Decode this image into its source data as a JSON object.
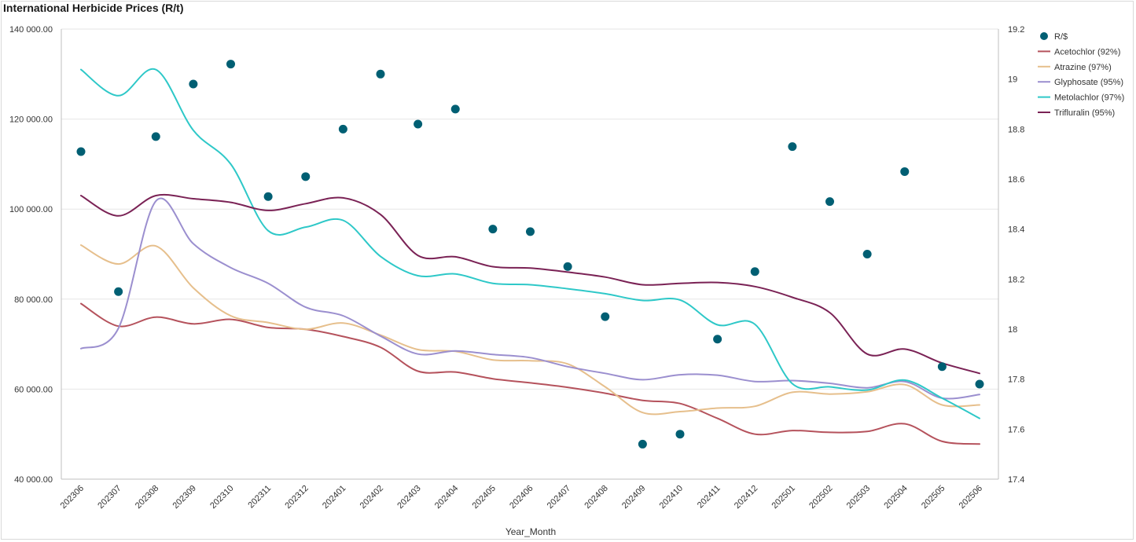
{
  "title": "International Herbicide Prices (R/t)",
  "chart_data": {
    "type": "line",
    "title": "International Herbicide Prices (R/t)",
    "xlabel": "Year_Month",
    "ylabel": "",
    "y2label": "",
    "categories": [
      "202306",
      "202307",
      "202308",
      "202309",
      "202310",
      "202311",
      "202312",
      "202401",
      "202402",
      "202403",
      "202404",
      "202405",
      "202406",
      "202407",
      "202408",
      "202409",
      "202410",
      "202411",
      "202412",
      "202501",
      "202502",
      "202503",
      "202504",
      "202505",
      "202506"
    ],
    "ylim": [
      40000,
      140000
    ],
    "y_ticks": [
      140000,
      120000,
      100000,
      80000,
      60000,
      40000
    ],
    "y_tick_labels": [
      "140 000.00",
      "120 000.00",
      "100 000.00",
      "80 000.00",
      "60 000.00",
      "40 000.00"
    ],
    "y2lim": [
      17.4,
      19.2
    ],
    "y2_ticks": [
      19.2,
      19,
      18.8,
      18.6,
      18.4,
      18.2,
      18,
      17.8,
      17.6,
      17.4
    ],
    "y2_tick_labels": [
      "19.2",
      "19",
      "18.8",
      "18.6",
      "18.4",
      "18.2",
      "18",
      "17.8",
      "17.6",
      "17.4"
    ],
    "grid": true,
    "legend_position": "top-right",
    "scatter_series": {
      "name": "R/$",
      "color": "#005f73",
      "axis": "right",
      "values": [
        18.71,
        18.15,
        18.77,
        18.98,
        19.06,
        18.53,
        18.61,
        18.8,
        19.02,
        18.82,
        18.88,
        18.4,
        18.39,
        18.25,
        18.05,
        17.54,
        17.58,
        17.96,
        18.23,
        18.73,
        18.51,
        18.3,
        18.63,
        17.85,
        17.78
      ]
    },
    "series": [
      {
        "name": "Acetochlor (92%)",
        "color": "#b5525c",
        "values": [
          79000,
          74000,
          76000,
          74500,
          75500,
          73700,
          73300,
          71700,
          69300,
          64000,
          63800,
          62300,
          61400,
          60400,
          59100,
          57500,
          56800,
          53500,
          50000,
          50800,
          50400,
          50600,
          52300,
          48400,
          47800
        ]
      },
      {
        "name": "Atrazine (97%)",
        "color": "#e6bf8c",
        "values": [
          92000,
          87800,
          91800,
          82500,
          76300,
          74800,
          73300,
          74700,
          72000,
          68800,
          68400,
          66500,
          66300,
          65600,
          60500,
          54800,
          55000,
          55800,
          56200,
          59300,
          58900,
          59400,
          61000,
          56500,
          56500
        ]
      },
      {
        "name": "Glyphosate (95%)",
        "color": "#9b8fcf",
        "values": [
          69000,
          73500,
          101800,
          92300,
          87000,
          83500,
          78200,
          76300,
          71800,
          67800,
          68500,
          67700,
          67000,
          65000,
          63500,
          62100,
          63200,
          63100,
          61700,
          61900,
          61300,
          60300,
          61700,
          58000,
          58800
        ]
      },
      {
        "name": "Metolachlor (97%)",
        "color": "#2ec8c8",
        "values": [
          131000,
          125200,
          131000,
          117500,
          110000,
          95200,
          96000,
          97500,
          89500,
          85200,
          85600,
          83500,
          83200,
          82300,
          81200,
          79700,
          79800,
          74300,
          74400,
          61200,
          60500,
          59800,
          62000,
          58000,
          53500
        ]
      },
      {
        "name": "Trifluralin (95%)",
        "color": "#7a2255",
        "values": [
          103000,
          98500,
          103000,
          102300,
          101500,
          99700,
          101200,
          102500,
          98800,
          89700,
          89400,
          87200,
          86900,
          86000,
          84900,
          83200,
          83500,
          83700,
          82800,
          80400,
          77000,
          67800,
          68900,
          65800,
          63500
        ]
      }
    ]
  }
}
